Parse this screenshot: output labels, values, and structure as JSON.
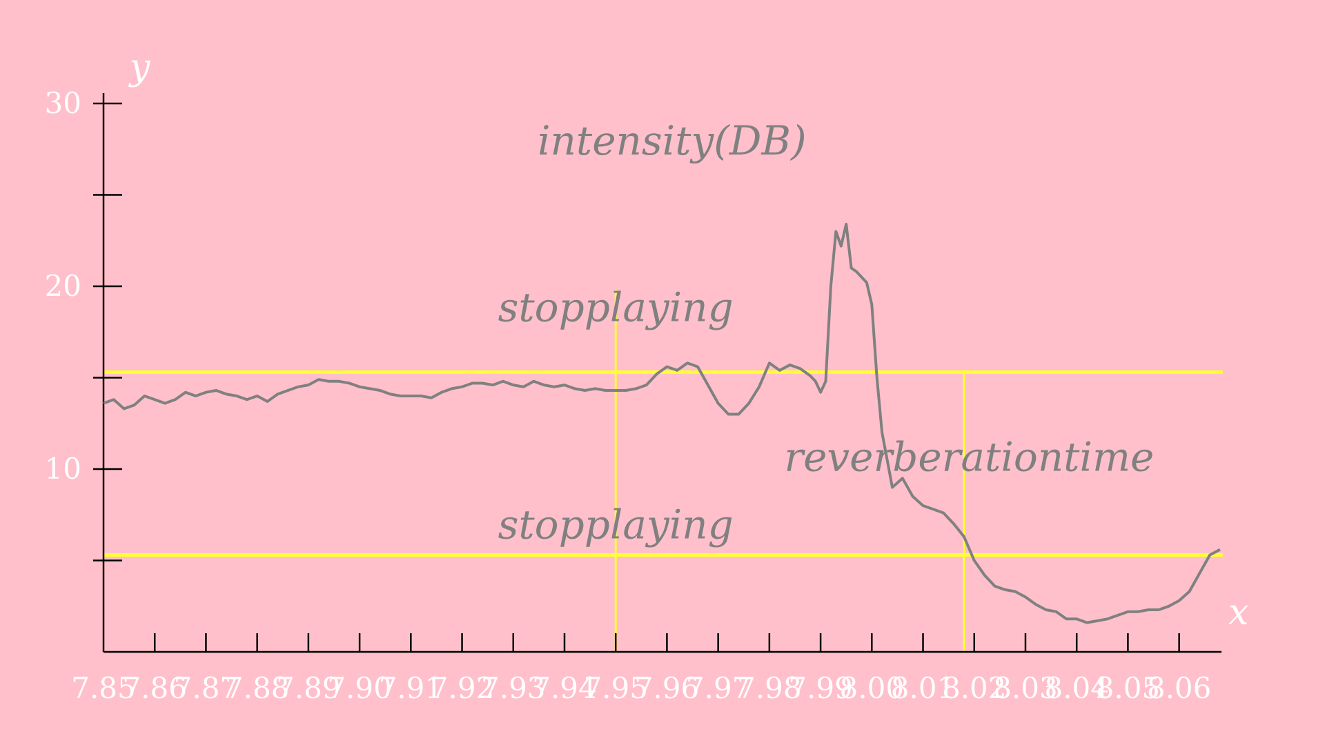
{
  "chart_data": {
    "type": "line",
    "title": "",
    "xlabel": "x",
    "ylabel": "y",
    "xlim": [
      7.85,
      8.068
    ],
    "ylim": [
      0,
      30
    ],
    "grid": false,
    "background_color": "#ffc0cb",
    "line_color": "#808080",
    "marker_line_color": "#ffff33",
    "x_ticks": [
      7.85,
      7.86,
      7.87,
      7.88,
      7.89,
      7.9,
      7.91,
      7.92,
      7.93,
      7.94,
      7.95,
      7.96,
      7.97,
      7.98,
      7.99,
      8.0,
      8.01,
      8.02,
      8.03,
      8.04,
      8.05,
      8.06
    ],
    "x_tick_labels": [
      "7.85",
      "7.86",
      "7.87",
      "7.88",
      "7.89",
      "7.90",
      "7.91",
      "7.92",
      "7.93",
      "7.94",
      "7.95",
      "7.96",
      "7.97",
      "7.98",
      "7.99",
      "8.00",
      "8.01",
      "8.02",
      "8.03",
      "8.04",
      "8.05",
      "8.06"
    ],
    "y_ticks": [
      5,
      10,
      15,
      20,
      25,
      30
    ],
    "y_tick_labels": [
      "10",
      "20",
      "30"
    ],
    "y_tick_label_values": [
      10,
      20,
      30
    ],
    "horizontal_lines": [
      15.3,
      5.3
    ],
    "vertical_lines": [
      {
        "x": 7.95,
        "y_from": 0,
        "y_to": 19.8
      },
      {
        "x": 8.018,
        "y_from": 0,
        "y_to": 15.3
      }
    ],
    "annotations": [
      {
        "text": "intensity(DB)",
        "x": 7.961,
        "y": 27.2
      },
      {
        "text": "stopplaying",
        "x": 7.95,
        "y": 18.1
      },
      {
        "text": "reverberationtime",
        "x": 8.019,
        "y": 9.9
      },
      {
        "text": "stopplaying",
        "x": 7.95,
        "y": 6.2
      }
    ],
    "series": [
      {
        "x": [
          7.85,
          7.852,
          7.854,
          7.856,
          7.858,
          7.86,
          7.862,
          7.864,
          7.866,
          7.868,
          7.87,
          7.872,
          7.874,
          7.876,
          7.878,
          7.88,
          7.882,
          7.884,
          7.886,
          7.888,
          7.89,
          7.892,
          7.894,
          7.896,
          7.898,
          7.9,
          7.902,
          7.904,
          7.906,
          7.908,
          7.91,
          7.912,
          7.914,
          7.916,
          7.918,
          7.92,
          7.922,
          7.924,
          7.926,
          7.928,
          7.93,
          7.932,
          7.934,
          7.936,
          7.938,
          7.94,
          7.942,
          7.944,
          7.946,
          7.948,
          7.95,
          7.952,
          7.954,
          7.956,
          7.958,
          7.96,
          7.962,
          7.964,
          7.966,
          7.968,
          7.97,
          7.972,
          7.974,
          7.976,
          7.978,
          7.98,
          7.982,
          7.984,
          7.986,
          7.988,
          7.989,
          7.99,
          7.991,
          7.992,
          7.993,
          7.994,
          7.995,
          7.996,
          7.997,
          7.998,
          7.999,
          8.0,
          8.001,
          8.002,
          8.003,
          8.004,
          8.006,
          8.008,
          8.01,
          8.012,
          8.014,
          8.016,
          8.018,
          8.02,
          8.022,
          8.024,
          8.026,
          8.028,
          8.03,
          8.032,
          8.034,
          8.036,
          8.038,
          8.04,
          8.042,
          8.044,
          8.046,
          8.048,
          8.05,
          8.052,
          8.054,
          8.056,
          8.058,
          8.06,
          8.062,
          8.064,
          8.066,
          8.068
        ],
        "y": [
          13.6,
          13.8,
          13.3,
          13.5,
          14.0,
          13.8,
          13.6,
          13.8,
          14.2,
          14.0,
          14.2,
          14.3,
          14.1,
          14.0,
          13.8,
          14.0,
          13.7,
          14.1,
          14.3,
          14.5,
          14.6,
          14.9,
          14.8,
          14.8,
          14.7,
          14.5,
          14.4,
          14.3,
          14.1,
          14.0,
          14.0,
          14.0,
          13.9,
          14.2,
          14.4,
          14.5,
          14.7,
          14.7,
          14.6,
          14.8,
          14.6,
          14.5,
          14.8,
          14.6,
          14.5,
          14.6,
          14.4,
          14.3,
          14.4,
          14.3,
          14.3,
          14.3,
          14.4,
          14.6,
          15.2,
          15.6,
          15.4,
          15.8,
          15.6,
          14.6,
          13.6,
          13.0,
          13.0,
          13.6,
          14.5,
          15.8,
          15.4,
          15.7,
          15.5,
          15.1,
          14.8,
          14.2,
          14.8,
          20.0,
          23.0,
          22.2,
          23.4,
          21.0,
          20.8,
          20.5,
          20.2,
          19.0,
          15.0,
          12.0,
          10.5,
          9.0,
          9.5,
          8.5,
          8.0,
          7.8,
          7.6,
          7.0,
          6.3,
          5.0,
          4.2,
          3.6,
          3.4,
          3.3,
          3.0,
          2.6,
          2.3,
          2.2,
          1.8,
          1.8,
          1.6,
          1.7,
          1.8,
          2.0,
          2.2,
          2.2,
          2.3,
          2.3,
          2.5,
          2.8,
          3.3,
          4.3,
          5.3,
          5.6
        ]
      }
    ]
  }
}
